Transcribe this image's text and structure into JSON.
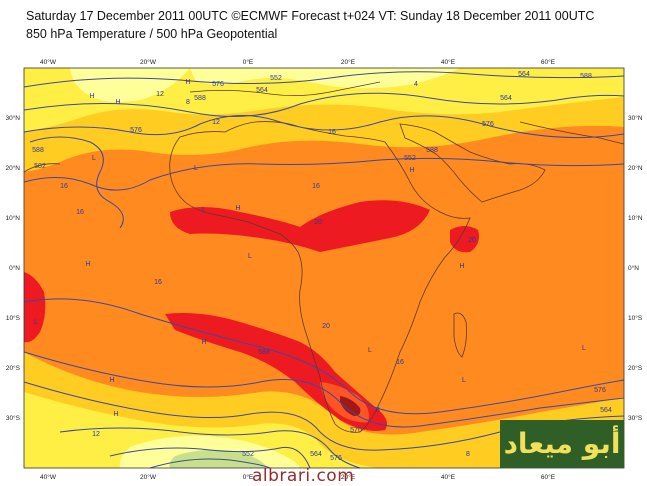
{
  "header": {
    "line1": "Saturday 17 December 2011 00UTC ©ECMWF Forecast t+024 VT: Sunday 18 December 2011 00UTC",
    "line2": "850 hPa Temperature / 500 hPa Geopotential"
  },
  "map": {
    "lon_ticks": [
      "40°W",
      "20°W",
      "0°E",
      "20°E",
      "40°E",
      "60°E"
    ],
    "lat_ticks": [
      "30°N",
      "20°N",
      "10°N",
      "0°N",
      "10°S",
      "20°S",
      "30°S"
    ],
    "isotherm_labels": [
      "4",
      "8",
      "12",
      "12",
      "16",
      "16",
      "16",
      "16",
      "16",
      "16",
      "20",
      "20",
      "20",
      "12",
      "8",
      "8"
    ],
    "geopotential_labels": [
      "552",
      "564",
      "576",
      "588",
      "576",
      "564",
      "552",
      "588",
      "582",
      "588",
      "576",
      "564",
      "588",
      "576",
      "588",
      "552",
      "564",
      "576",
      "570",
      "564"
    ],
    "pressure_markers": [
      "H",
      "H",
      "H",
      "L",
      "L",
      "H",
      "L",
      "H",
      "L",
      "H",
      "L",
      "H",
      "L",
      "H",
      "L",
      "H",
      "L",
      "H"
    ],
    "colors": {
      "cold_green": "#c8e089",
      "light_yellow": "#ffff99",
      "yellow": "#ffee44",
      "gold": "#ffcc22",
      "orange_light": "#ffaa22",
      "orange": "#ff8a1f",
      "red_orange": "#ff5522",
      "red": "#ee1a22",
      "dark_red": "#a01818",
      "contour": "#3b4aa0",
      "coast": "#5a3a2a"
    }
  },
  "logo": {
    "text": "أبو ميعاد"
  },
  "watermark": {
    "text": "albrari.com"
  }
}
